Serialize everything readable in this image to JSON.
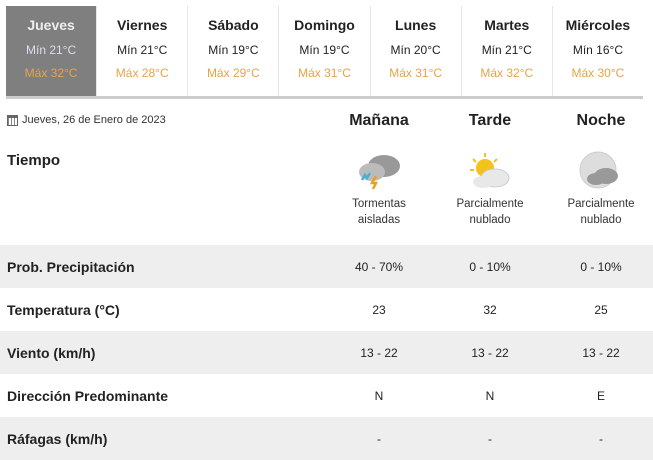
{
  "days": [
    {
      "day": "Jueves",
      "min": "Mín 21°C",
      "max": "Máx 32°C",
      "active": true
    },
    {
      "day": "Viernes",
      "min": "Mín 21°C",
      "max": "Máx 28°C"
    },
    {
      "day": "Sábado",
      "min": "Mín 19°C",
      "max": "Máx 29°C"
    },
    {
      "day": "Domingo",
      "min": "Mín 19°C",
      "max": "Máx 31°C"
    },
    {
      "day": "Lunes",
      "min": "Mín 20°C",
      "max": "Máx 31°C"
    },
    {
      "day": "Martes",
      "min": "Mín 21°C",
      "max": "Máx 32°C"
    },
    {
      "day": "Miércoles",
      "min": "Mín 16°C",
      "max": "Máx 30°C"
    }
  ],
  "date": "Jueves, 26 de Enero de 2023",
  "periods": [
    "Mañana",
    "Tarde",
    "Noche"
  ],
  "weather": {
    "label": "Tiempo",
    "items": [
      {
        "icon": "thunderstorm-icon",
        "l1": "Tormentas",
        "l2": "aisladas"
      },
      {
        "icon": "partly-cloudy-day-icon",
        "l1": "Parcialmente",
        "l2": "nublado"
      },
      {
        "icon": "partly-cloudy-night-icon",
        "l1": "Parcialmente",
        "l2": "nublado"
      }
    ]
  },
  "rows": [
    {
      "label": "Prob. Precipitación",
      "values": [
        "40 - 70%",
        "0 - 10%",
        "0 - 10%"
      ]
    },
    {
      "label": "Temperatura (°C)",
      "values": [
        "23",
        "32",
        "25"
      ]
    },
    {
      "label": "Viento (km/h)",
      "values": [
        "13 - 22",
        "13 - 22",
        "13 - 22"
      ]
    },
    {
      "label": "Dirección Predominante",
      "values": [
        "N",
        "N",
        "E"
      ]
    },
    {
      "label": "Ráfagas (km/h)",
      "values": [
        "-",
        "-",
        "-"
      ]
    }
  ],
  "colors": {
    "max": "#e8a24a",
    "active_tab": "#7f7f7f",
    "stripe": "#eeeeee"
  }
}
